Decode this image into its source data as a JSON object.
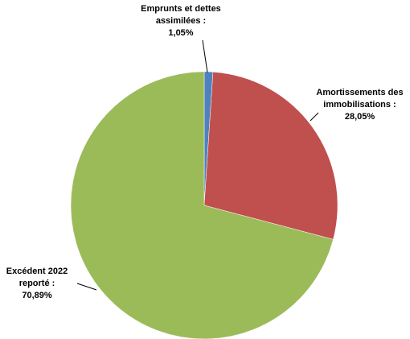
{
  "chart_data": {
    "type": "pie",
    "categories": [
      "Emprunts et dettes assimilées :",
      "Amortissements des immobilisations :",
      "Excédent 2022 reporté :"
    ],
    "values": [
      1.05,
      28.05,
      70.89
    ],
    "value_labels": [
      "1,05%",
      "28,05%",
      "70,89%"
    ],
    "colors": [
      "#4f81bd",
      "#c0504d",
      "#9bbb59"
    ]
  }
}
